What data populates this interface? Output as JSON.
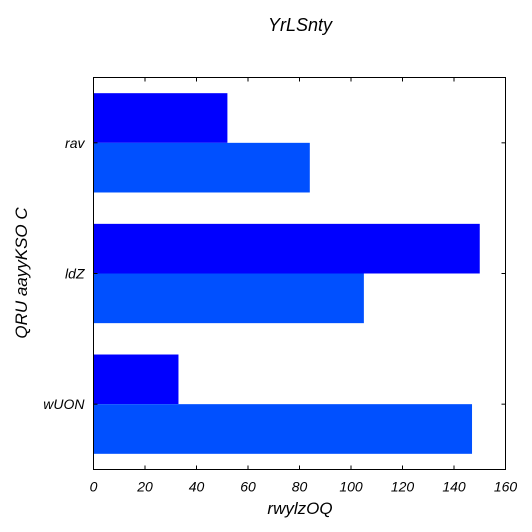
{
  "chart_data": {
    "type": "bar",
    "orientation": "horizontal",
    "title": "YrLSnty",
    "xlabel": "rwylzOQ",
    "ylabel": "QRU aayyKSO C",
    "categories": [
      "rav",
      "ldZ",
      "wUON"
    ],
    "series": [
      {
        "color": "#0000ff",
        "values": [
          52,
          150,
          33
        ]
      },
      {
        "color": "#0050ff",
        "values": [
          84,
          105,
          147
        ]
      }
    ],
    "xlim": [
      0,
      160
    ],
    "xticks": [
      0,
      20,
      40,
      60,
      80,
      100,
      120,
      140,
      160
    ],
    "grid": false,
    "legend": "none"
  }
}
